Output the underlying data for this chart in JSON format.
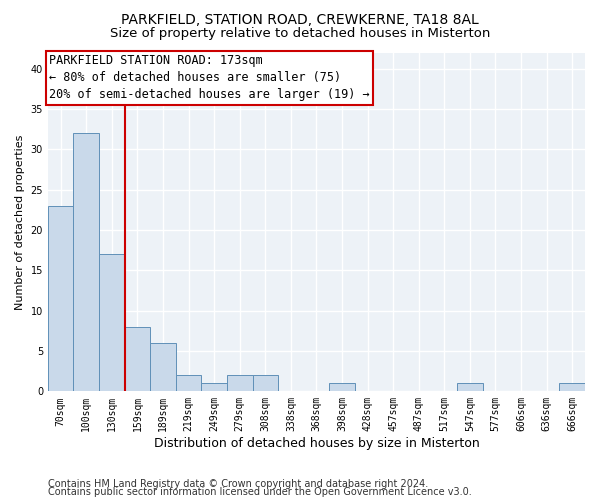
{
  "title1": "PARKFIELD, STATION ROAD, CREWKERNE, TA18 8AL",
  "title2": "Size of property relative to detached houses in Misterton",
  "xlabel": "Distribution of detached houses by size in Misterton",
  "ylabel": "Number of detached properties",
  "categories": [
    "70sqm",
    "100sqm",
    "130sqm",
    "159sqm",
    "189sqm",
    "219sqm",
    "249sqm",
    "279sqm",
    "308sqm",
    "338sqm",
    "368sqm",
    "398sqm",
    "428sqm",
    "457sqm",
    "487sqm",
    "517sqm",
    "547sqm",
    "577sqm",
    "606sqm",
    "636sqm",
    "666sqm"
  ],
  "values": [
    23,
    32,
    17,
    8,
    6,
    2,
    1,
    2,
    2,
    0,
    0,
    1,
    0,
    0,
    0,
    0,
    1,
    0,
    0,
    0,
    1
  ],
  "bar_color": "#c9d9ea",
  "bar_edge_color": "#6090b8",
  "vline_x": 2.5,
  "vline_color": "#cc0000",
  "annotation_line1": "PARKFIELD STATION ROAD: 173sqm",
  "annotation_line2": "← 80% of detached houses are smaller (75)",
  "annotation_line3": "20% of semi-detached houses are larger (19) →",
  "annotation_box_color": "#cc0000",
  "ylim": [
    0,
    42
  ],
  "yticks": [
    0,
    5,
    10,
    15,
    20,
    25,
    30,
    35,
    40
  ],
  "footer1": "Contains HM Land Registry data © Crown copyright and database right 2024.",
  "footer2": "Contains public sector information licensed under the Open Government Licence v3.0.",
  "background_color": "#edf2f7",
  "grid_color": "#ffffff",
  "title1_fontsize": 10,
  "title2_fontsize": 9.5,
  "xlabel_fontsize": 9,
  "ylabel_fontsize": 8,
  "tick_fontsize": 7,
  "footer_fontsize": 7,
  "annotation_fontsize": 8.5
}
